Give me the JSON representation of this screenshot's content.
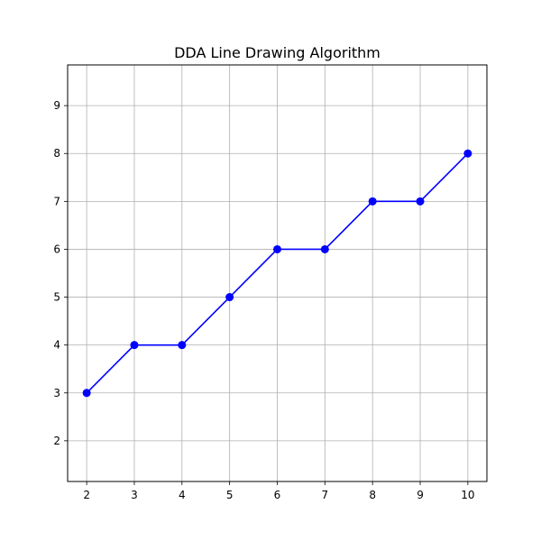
{
  "chart_data": {
    "type": "line",
    "title": "DDA Line Drawing Algorithm",
    "xlabel": "",
    "ylabel": "",
    "x": [
      2,
      3,
      4,
      5,
      6,
      7,
      8,
      9,
      10
    ],
    "y": [
      3,
      4,
      4,
      5,
      6,
      6,
      7,
      7,
      8
    ],
    "xlim": [
      1.6,
      10.4
    ],
    "ylim": [
      1.15,
      9.85
    ],
    "xticks": [
      2,
      3,
      4,
      5,
      6,
      7,
      8,
      9,
      10
    ],
    "yticks": [
      2,
      3,
      4,
      5,
      6,
      7,
      8,
      9
    ],
    "grid": true,
    "line_color": "#0000ff",
    "marker": "circle"
  }
}
